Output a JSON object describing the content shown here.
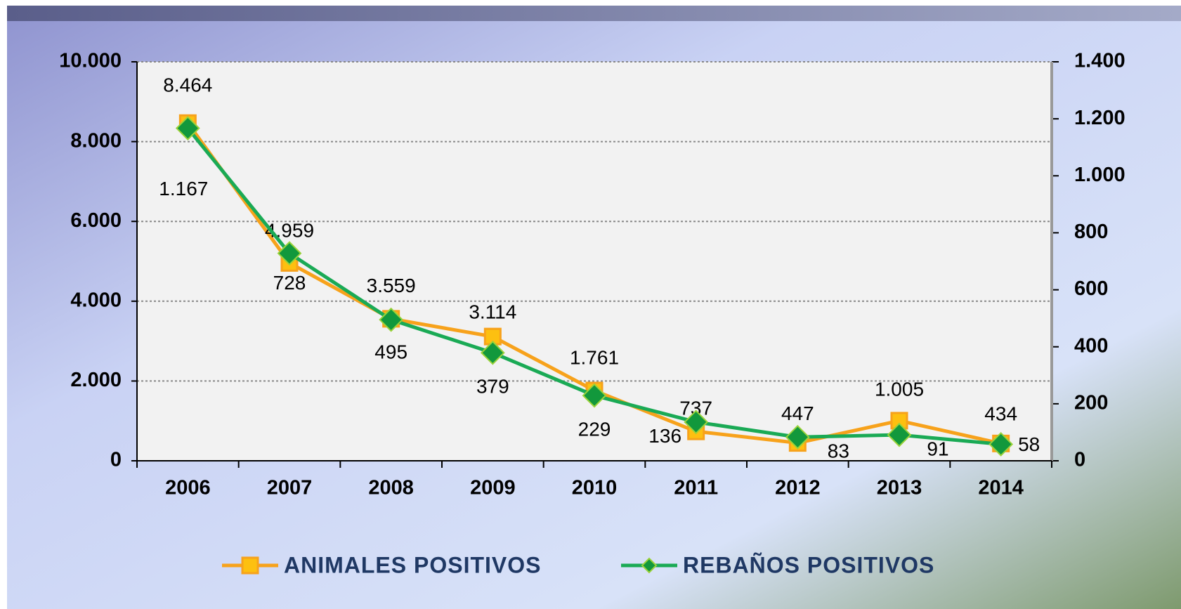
{
  "chart_data": {
    "type": "line",
    "categories": [
      "2006",
      "2007",
      "2008",
      "2009",
      "2010",
      "2011",
      "2012",
      "2013",
      "2014"
    ],
    "series": [
      {
        "name": "ANIMALES POSITIVOS",
        "color": "#f7a21b",
        "values": [
          8464,
          4959,
          3559,
          3114,
          1761,
          737,
          447,
          1005,
          434
        ],
        "value_labels": [
          "8.464",
          "4.959",
          "3.559",
          "3.114",
          "1.761",
          "737",
          "447",
          "1.005",
          "434"
        ]
      },
      {
        "name": "REBAÑOS POSITIVOS",
        "color": "#1aaa55",
        "axis": "y2",
        "values": [
          1167,
          728,
          495,
          379,
          229,
          136,
          83,
          91,
          58
        ],
        "value_labels": [
          "1.167",
          "728",
          "495",
          "379",
          "229",
          "136",
          "83",
          "91",
          "58"
        ]
      }
    ],
    "ylim": [
      0,
      10000
    ],
    "yticks": [
      0,
      {
        "value": 2000,
        "label": "2.000"
      },
      {
        "value": 4000,
        "label": "4.000"
      },
      {
        "value": 6000,
        "label": "6.000"
      },
      {
        "value": 8000,
        "label": "8.000"
      },
      {
        "value": 10000,
        "label": "10.000"
      }
    ],
    "y2lim": [
      0,
      1400
    ],
    "y2ticks": [
      0,
      200,
      400,
      600,
      800,
      {
        "value": 1000,
        "label": "1.000"
      },
      {
        "value": 1200,
        "label": "1.200"
      },
      {
        "value": 1400,
        "label": "1.400"
      }
    ],
    "grid": true,
    "legend": "bottom"
  }
}
